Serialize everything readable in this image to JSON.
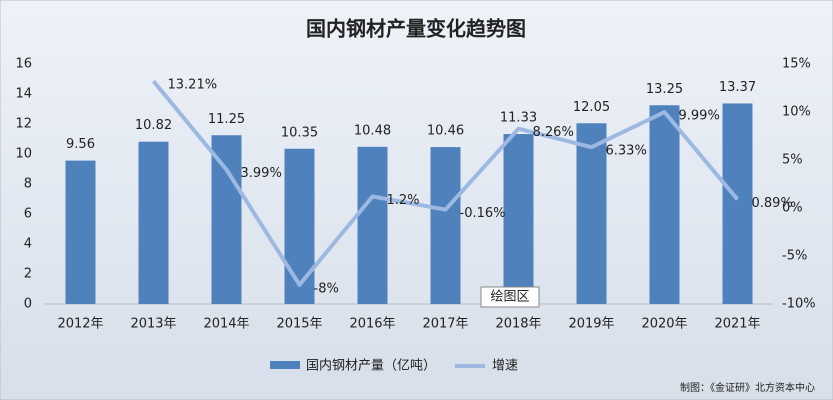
{
  "chart_data": {
    "type": "bar-line",
    "title": "国内钢材产量变化趋势图",
    "categories": [
      "2012年",
      "2013年",
      "2014年",
      "2015年",
      "2016年",
      "2017年",
      "2018年",
      "2019年",
      "2020年",
      "2021年"
    ],
    "series": [
      {
        "name": "国内钢材产量（亿吨）",
        "color": "#4f81bd",
        "type": "bar",
        "values": [
          9.56,
          10.82,
          11.25,
          10.35,
          10.48,
          10.46,
          11.33,
          12.05,
          13.25,
          13.37
        ]
      },
      {
        "name": "增速",
        "color": "#9db9e2",
        "type": "line",
        "axis": "y2",
        "values": [
          null,
          13.21,
          3.99,
          -8,
          1.2,
          -0.16,
          8.26,
          6.33,
          9.99,
          0.89
        ],
        "value_labels": [
          null,
          "13.21%",
          "3.99%",
          "-8%",
          "1.2%",
          "-0.16%",
          "8.26%",
          "6.33%",
          "9.99%",
          "0.89%"
        ]
      }
    ],
    "ylim": [
      0,
      16
    ],
    "yticks": [
      0,
      2,
      4,
      6,
      8,
      10,
      12,
      14,
      16
    ],
    "y2lim": [
      -10,
      15
    ],
    "y2ticks": [
      {
        "value": -10,
        "label": "-10%"
      },
      {
        "value": -5,
        "label": "-5%"
      },
      {
        "value": 0,
        "label": "0%"
      },
      {
        "value": 5,
        "label": "5%"
      },
      {
        "value": 10,
        "label": "10%"
      },
      {
        "value": 15,
        "label": "15%"
      }
    ],
    "grid": false,
    "legend": "bottom",
    "annotations": [
      "绘图区",
      "制图：《金证研》北方资本中心"
    ]
  }
}
